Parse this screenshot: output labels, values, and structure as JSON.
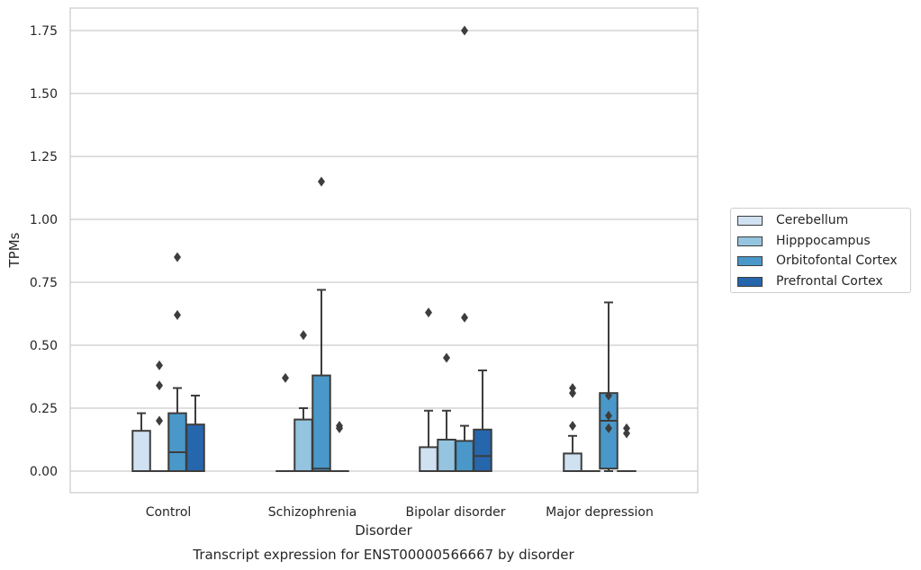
{
  "chart_data": {
    "type": "box",
    "title": "Transcript expression for ENST00000566667 by disorder",
    "xlabel": "Disorder",
    "ylabel": "TPMs",
    "ylim": [
      -0.085,
      1.84
    ],
    "yticks": [
      "0.00",
      "0.25",
      "0.50",
      "0.75",
      "1.00",
      "1.25",
      "1.50",
      "1.75"
    ],
    "ytick_values": [
      0,
      0.25,
      0.5,
      0.75,
      1.0,
      1.25,
      1.5,
      1.75
    ],
    "grid": "horizontal",
    "legend_position": "right",
    "categories": [
      "Control",
      "Schizophrenia",
      "Bipolar disorder",
      "Major depression"
    ],
    "series": [
      {
        "name": "Cerebellum",
        "color": "#d0e1f2",
        "boxes": [
          {
            "min": 0,
            "q1": 0,
            "median": 0,
            "q3": 0.16,
            "max": 0.23,
            "outliers": []
          },
          {
            "min": 0,
            "q1": 0,
            "median": 0,
            "q3": 0,
            "max": 0,
            "outliers": [
              0.37
            ]
          },
          {
            "min": 0,
            "q1": 0,
            "median": 0,
            "q3": 0.095,
            "max": 0.24,
            "outliers": [
              0.63
            ]
          },
          {
            "min": 0,
            "q1": 0,
            "median": 0,
            "q3": 0.07,
            "max": 0.14,
            "outliers": [
              0.18,
              0.31,
              0.33
            ]
          }
        ]
      },
      {
        "name": "Hipppocampus",
        "color": "#94c4df",
        "boxes": [
          {
            "min": 0,
            "q1": 0,
            "median": 0,
            "q3": 0,
            "max": 0,
            "outliers": [
              0.2,
              0.34,
              0.42
            ]
          },
          {
            "min": 0,
            "q1": 0,
            "median": 0,
            "q3": 0.205,
            "max": 0.25,
            "outliers": [
              0.54
            ]
          },
          {
            "min": 0,
            "q1": 0,
            "median": 0,
            "q3": 0.125,
            "max": 0.24,
            "outliers": [
              0.45
            ]
          },
          {
            "min": 0,
            "q1": 0,
            "median": 0,
            "q3": 0,
            "max": 0,
            "outliers": []
          }
        ]
      },
      {
        "name": "Orbitofontal Cortex",
        "color": "#4a98c9",
        "boxes": [
          {
            "min": 0,
            "q1": 0,
            "median": 0.075,
            "q3": 0.23,
            "max": 0.33,
            "outliers": [
              0.62,
              0.85
            ]
          },
          {
            "min": 0,
            "q1": 0,
            "median": 0.01,
            "q3": 0.38,
            "max": 0.72,
            "outliers": [
              1.15
            ]
          },
          {
            "min": 0,
            "q1": 0,
            "median": 0,
            "q3": 0.12,
            "max": 0.18,
            "outliers": [
              0.61,
              1.75
            ]
          },
          {
            "min": 0,
            "q1": 0.01,
            "median": 0.2,
            "q3": 0.31,
            "max": 0.67,
            "outliers": [
              0.17,
              0.22,
              0.3
            ]
          }
        ]
      },
      {
        "name": "Prefrontal Cortex",
        "color": "#2566ad",
        "boxes": [
          {
            "min": 0,
            "q1": 0,
            "median": 0,
            "q3": 0.185,
            "max": 0.3,
            "outliers": []
          },
          {
            "min": 0,
            "q1": 0,
            "median": 0,
            "q3": 0,
            "max": 0,
            "outliers": [
              0.17,
              0.18
            ]
          },
          {
            "min": 0,
            "q1": 0,
            "median": 0.06,
            "q3": 0.165,
            "max": 0.4,
            "outliers": []
          },
          {
            "min": 0,
            "q1": 0,
            "median": 0,
            "q3": 0,
            "max": 0,
            "outliers": [
              0.15,
              0.17
            ]
          }
        ]
      }
    ]
  }
}
